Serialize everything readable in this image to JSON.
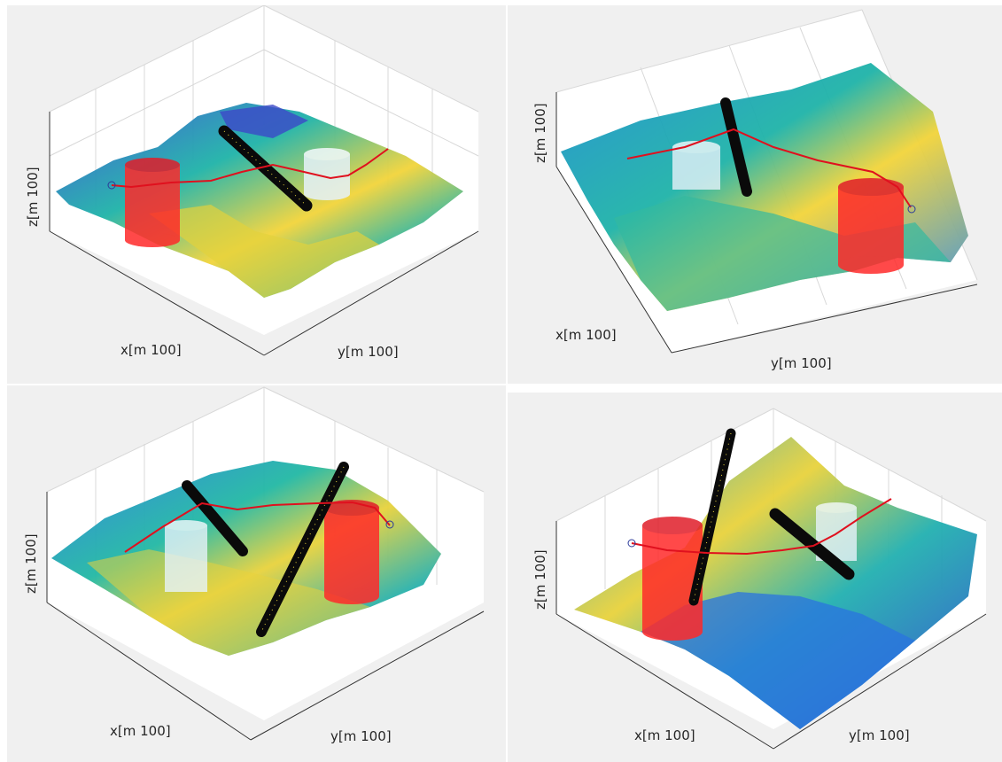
{
  "colors": {
    "background": "#f0f0f0",
    "path": "#e0101e",
    "cylinder_red": "#ff2a2a",
    "cylinder_white": "#e6f2fa",
    "pole_black": "#0a0a0a",
    "pole_dots": "#e8d23a",
    "terrain_low": "#3b4fd9",
    "terrain_mid": "#1fb3a8",
    "terrain_high": "#f2d43a"
  },
  "chart_data": [
    {
      "type": "surface",
      "colormap": "parula",
      "xlabel": "x[m 100]",
      "ylabel": "y[m 100]",
      "zlabel": "z[m 100]",
      "grid": true,
      "objects": [
        "red cylinder",
        "white cylinder",
        "black pole"
      ],
      "path": "red route with start marker"
    },
    {
      "type": "surface",
      "colormap": "parula",
      "xlabel": "x[m 100]",
      "ylabel": "y[m 100]",
      "zlabel": "z[m 100]",
      "grid": true,
      "objects": [
        "red cylinder",
        "white cylinder",
        "black pole"
      ],
      "path": "red route with end marker"
    },
    {
      "type": "surface",
      "colormap": "parula",
      "xlabel": "x[m 100]",
      "ylabel": "y[m 100]",
      "zlabel": "z[m 100]",
      "grid": true,
      "objects": [
        "red cylinder",
        "white cylinder",
        "black pole",
        "black pole"
      ],
      "path": "red route with end marker"
    },
    {
      "type": "surface",
      "colormap": "parula",
      "xlabel": "x[m 100]",
      "ylabel": "y[m 100]",
      "zlabel": "z[m 100]",
      "grid": true,
      "objects": [
        "red cylinder",
        "white cylinder",
        "black pole",
        "black pole"
      ],
      "path": "red route with start marker"
    }
  ]
}
